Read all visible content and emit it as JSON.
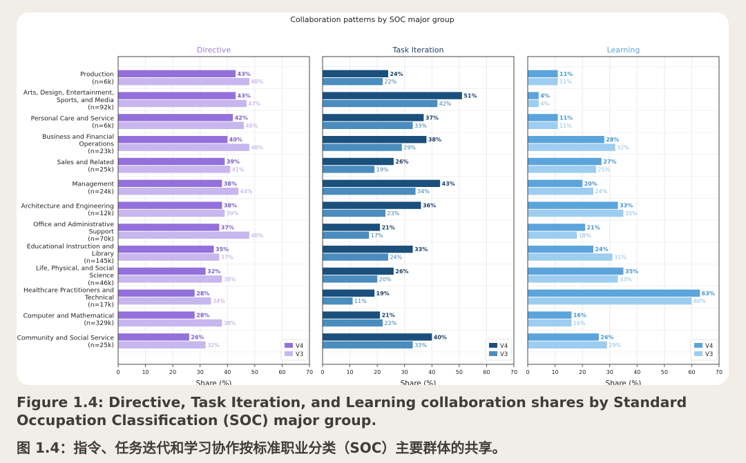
{
  "caption": {
    "en": "Figure 1.4: Directive, Task Iteration, and Learning collaboration shares by Standard Occupation Classification (SOC) major group.",
    "zh": "图 1.4：指令、任务迭代和学习协作按标准职业分类（SOC）主要群体的共享。"
  },
  "chart_data": {
    "type": "bar",
    "orientation": "horizontal",
    "title": "Collaboration patterns by SOC major group",
    "xlabel": "Share (%)",
    "xlim": [
      0,
      70
    ],
    "xticks": [
      0,
      10,
      20,
      30,
      40,
      50,
      60,
      70
    ],
    "grid": true,
    "categories": [
      [
        "Production",
        "(n=6k)"
      ],
      [
        "Arts, Design, Entertainment,",
        "Sports, and Media",
        "(n=92k)"
      ],
      [
        "Personal Care and Service",
        "(n=6k)"
      ],
      [
        "Business and Financial",
        "Operations",
        "(n=23k)"
      ],
      [
        "Sales and Related",
        "(n=25k)"
      ],
      [
        "Management",
        "(n=24k)"
      ],
      [
        "Architecture and Engineering",
        "(n=12k)"
      ],
      [
        "Office and Administrative",
        "Support",
        "(n=70k)"
      ],
      [
        "Educational Instruction and",
        "Library",
        "(n=145k)"
      ],
      [
        "Life, Physical, and Social",
        "Science",
        "(n=46k)"
      ],
      [
        "Healthcare Practitioners and",
        "Technical",
        "(n=17k)"
      ],
      [
        "Computer and Mathematical",
        "(n=329k)"
      ],
      [
        "Community and Social Service",
        "(n=25k)"
      ]
    ],
    "panels": [
      {
        "title": "Directive",
        "title_color": "#9b7fd9",
        "legend_position": "bottom-right",
        "series": [
          {
            "name": "V4",
            "color": "#9370db",
            "label_color": "#7a5fc0",
            "values": [
              43,
              43,
              42,
              40,
              39,
              38,
              38,
              37,
              35,
              32,
              28,
              28,
              26
            ]
          },
          {
            "name": "V3",
            "color": "#c8b6ef",
            "label_color": "#b5a2e4",
            "values": [
              48,
              47,
              46,
              48,
              41,
              44,
              39,
              48,
              37,
              38,
              34,
              38,
              32
            ]
          }
        ]
      },
      {
        "title": "Task Iteration",
        "title_color": "#1f3f66",
        "legend_position": "bottom-right",
        "series": [
          {
            "name": "V4",
            "color": "#1b4f7c",
            "label_color": "#1b3f66",
            "values": [
              24,
              51,
              37,
              38,
              26,
              43,
              36,
              21,
              33,
              26,
              19,
              21,
              40
            ]
          },
          {
            "name": "V3",
            "color": "#4a8dbe",
            "label_color": "#3a7cae",
            "values": [
              22,
              42,
              33,
              29,
              19,
              34,
              23,
              17,
              24,
              20,
              11,
              22,
              33
            ]
          }
        ]
      },
      {
        "title": "Learning",
        "title_color": "#5aa5dc",
        "legend_position": "bottom-right",
        "series": [
          {
            "name": "V4",
            "color": "#5ba4dc",
            "label_color": "#4a94cc",
            "values": [
              11,
              4,
              11,
              28,
              27,
              20,
              33,
              21,
              24,
              35,
              63,
              16,
              26
            ]
          },
          {
            "name": "V3",
            "color": "#9dcdf0",
            "label_color": "#88bde3",
            "values": [
              11,
              4,
              11,
              32,
              25,
              24,
              35,
              18,
              31,
              33,
              60,
              16,
              29
            ]
          }
        ]
      }
    ]
  }
}
